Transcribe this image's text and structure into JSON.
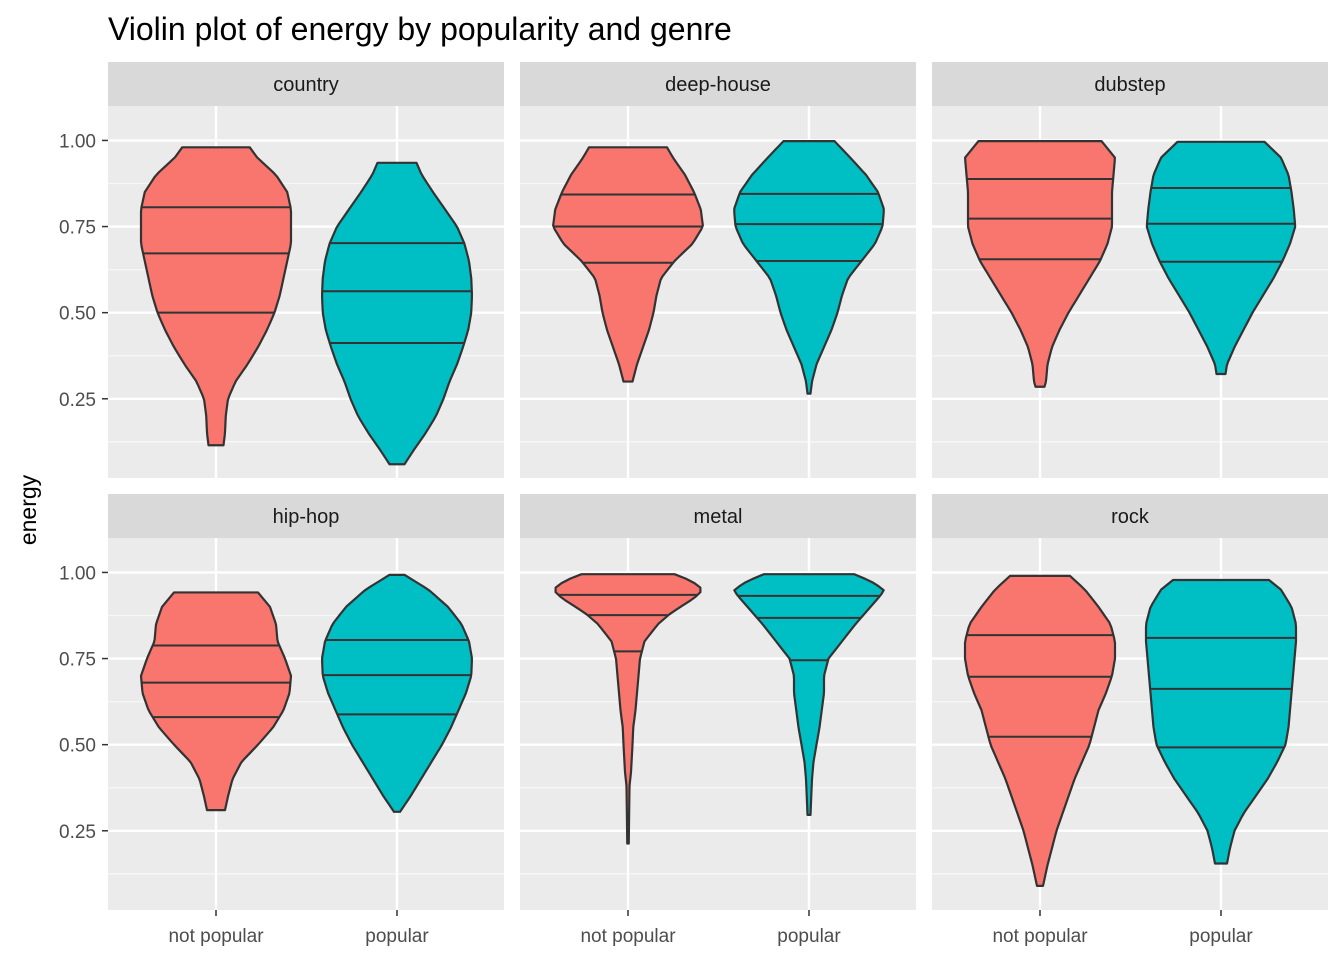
{
  "chart_data": {
    "type": "violin",
    "title": "Violin plot of energy by popularity and genre",
    "xlabel": "",
    "ylabel": "energy",
    "ylim": [
      0.02,
      1.1
    ],
    "yticks": [
      0.25,
      0.5,
      0.75,
      1.0
    ],
    "ytick_labels": [
      "0.25",
      "0.50",
      "0.75",
      "1.00"
    ],
    "categories": [
      "not popular",
      "popular"
    ],
    "fill_colors": {
      "not popular": "#F8766D",
      "popular": "#00BFC4"
    },
    "grid": true,
    "legend": "none",
    "facets": [
      {
        "genre": "country",
        "violins": [
          {
            "category": "not popular",
            "min": 0.115,
            "max": 0.98,
            "quantiles": [
              0.5,
              0.672,
              0.806
            ],
            "profile": [
              [
                0.115,
                0.1
              ],
              [
                0.15,
                0.12
              ],
              [
                0.2,
                0.13
              ],
              [
                0.25,
                0.16
              ],
              [
                0.3,
                0.26
              ],
              [
                0.35,
                0.42
              ],
              [
                0.4,
                0.56
              ],
              [
                0.45,
                0.68
              ],
              [
                0.5,
                0.78
              ],
              [
                0.55,
                0.85
              ],
              [
                0.6,
                0.9
              ],
              [
                0.65,
                0.95
              ],
              [
                0.7,
                1.0
              ],
              [
                0.75,
                1.0
              ],
              [
                0.8,
                1.0
              ],
              [
                0.85,
                0.95
              ],
              [
                0.9,
                0.8
              ],
              [
                0.95,
                0.55
              ],
              [
                0.98,
                0.45
              ]
            ]
          },
          {
            "category": "popular",
            "min": 0.06,
            "max": 0.935,
            "quantiles": [
              0.412,
              0.562,
              0.702
            ],
            "profile": [
              [
                0.06,
                0.1
              ],
              [
                0.1,
                0.22
              ],
              [
                0.15,
                0.38
              ],
              [
                0.2,
                0.52
              ],
              [
                0.25,
                0.62
              ],
              [
                0.3,
                0.7
              ],
              [
                0.35,
                0.8
              ],
              [
                0.4,
                0.88
              ],
              [
                0.45,
                0.95
              ],
              [
                0.5,
                0.99
              ],
              [
                0.55,
                1.0
              ],
              [
                0.6,
                0.99
              ],
              [
                0.65,
                0.96
              ],
              [
                0.7,
                0.9
              ],
              [
                0.75,
                0.8
              ],
              [
                0.8,
                0.64
              ],
              [
                0.85,
                0.48
              ],
              [
                0.9,
                0.33
              ],
              [
                0.935,
                0.26
              ]
            ]
          }
        ]
      },
      {
        "genre": "deep-house",
        "violins": [
          {
            "category": "not popular",
            "min": 0.3,
            "max": 0.98,
            "quantiles": [
              0.645,
              0.75,
              0.843
            ],
            "profile": [
              [
                0.3,
                0.06
              ],
              [
                0.35,
                0.12
              ],
              [
                0.4,
                0.2
              ],
              [
                0.45,
                0.28
              ],
              [
                0.5,
                0.34
              ],
              [
                0.55,
                0.38
              ],
              [
                0.6,
                0.44
              ],
              [
                0.65,
                0.62
              ],
              [
                0.7,
                0.86
              ],
              [
                0.75,
                1.0
              ],
              [
                0.8,
                0.97
              ],
              [
                0.85,
                0.88
              ],
              [
                0.9,
                0.76
              ],
              [
                0.95,
                0.6
              ],
              [
                0.98,
                0.52
              ]
            ]
          },
          {
            "category": "popular",
            "min": 0.265,
            "max": 0.998,
            "quantiles": [
              0.65,
              0.757,
              0.845
            ],
            "profile": [
              [
                0.265,
                0.02
              ],
              [
                0.3,
                0.04
              ],
              [
                0.35,
                0.1
              ],
              [
                0.4,
                0.2
              ],
              [
                0.45,
                0.3
              ],
              [
                0.5,
                0.38
              ],
              [
                0.55,
                0.44
              ],
              [
                0.6,
                0.52
              ],
              [
                0.65,
                0.7
              ],
              [
                0.7,
                0.88
              ],
              [
                0.75,
                0.98
              ],
              [
                0.8,
                1.0
              ],
              [
                0.85,
                0.92
              ],
              [
                0.9,
                0.76
              ],
              [
                0.95,
                0.55
              ],
              [
                0.998,
                0.34
              ]
            ]
          }
        ]
      },
      {
        "genre": "dubstep",
        "violins": [
          {
            "category": "not popular",
            "min": 0.285,
            "max": 0.998,
            "quantiles": [
              0.655,
              0.773,
              0.888
            ],
            "profile": [
              [
                0.285,
                0.06
              ],
              [
                0.3,
                0.08
              ],
              [
                0.35,
                0.1
              ],
              [
                0.4,
                0.16
              ],
              [
                0.45,
                0.26
              ],
              [
                0.5,
                0.38
              ],
              [
                0.55,
                0.52
              ],
              [
                0.6,
                0.66
              ],
              [
                0.65,
                0.8
              ],
              [
                0.7,
                0.9
              ],
              [
                0.75,
                0.96
              ],
              [
                0.8,
                0.96
              ],
              [
                0.85,
                0.96
              ],
              [
                0.9,
                0.98
              ],
              [
                0.95,
                1.0
              ],
              [
                0.998,
                0.82
              ]
            ]
          },
          {
            "category": "popular",
            "min": 0.322,
            "max": 0.996,
            "quantiles": [
              0.648,
              0.758,
              0.862
            ],
            "profile": [
              [
                0.322,
                0.06
              ],
              [
                0.35,
                0.08
              ],
              [
                0.4,
                0.18
              ],
              [
                0.45,
                0.3
              ],
              [
                0.5,
                0.42
              ],
              [
                0.55,
                0.56
              ],
              [
                0.6,
                0.7
              ],
              [
                0.65,
                0.82
              ],
              [
                0.7,
                0.92
              ],
              [
                0.75,
                0.99
              ],
              [
                0.8,
                0.97
              ],
              [
                0.85,
                0.94
              ],
              [
                0.9,
                0.9
              ],
              [
                0.95,
                0.8
              ],
              [
                0.996,
                0.58
              ]
            ]
          }
        ]
      },
      {
        "genre": "hip-hop",
        "violins": [
          {
            "category": "not popular",
            "min": 0.31,
            "max": 0.942,
            "quantiles": [
              0.58,
              0.68,
              0.788
            ],
            "profile": [
              [
                0.31,
                0.12
              ],
              [
                0.35,
                0.16
              ],
              [
                0.4,
                0.22
              ],
              [
                0.45,
                0.34
              ],
              [
                0.5,
                0.56
              ],
              [
                0.55,
                0.76
              ],
              [
                0.6,
                0.9
              ],
              [
                0.65,
                0.98
              ],
              [
                0.7,
                1.0
              ],
              [
                0.75,
                0.92
              ],
              [
                0.8,
                0.82
              ],
              [
                0.85,
                0.8
              ],
              [
                0.9,
                0.72
              ],
              [
                0.942,
                0.56
              ]
            ]
          },
          {
            "category": "popular",
            "min": 0.305,
            "max": 0.993,
            "quantiles": [
              0.588,
              0.702,
              0.804
            ],
            "profile": [
              [
                0.305,
                0.04
              ],
              [
                0.35,
                0.18
              ],
              [
                0.4,
                0.32
              ],
              [
                0.45,
                0.46
              ],
              [
                0.5,
                0.6
              ],
              [
                0.55,
                0.72
              ],
              [
                0.6,
                0.82
              ],
              [
                0.65,
                0.92
              ],
              [
                0.7,
                0.99
              ],
              [
                0.75,
                1.0
              ],
              [
                0.8,
                0.96
              ],
              [
                0.85,
                0.86
              ],
              [
                0.9,
                0.68
              ],
              [
                0.95,
                0.42
              ],
              [
                0.993,
                0.1
              ]
            ]
          }
        ]
      },
      {
        "genre": "metal",
        "violins": [
          {
            "category": "not popular",
            "min": 0.213,
            "max": 0.995,
            "quantiles": [
              0.771,
              0.876,
              0.935
            ],
            "profile": [
              [
                0.213,
                0.01
              ],
              [
                0.3,
                0.015
              ],
              [
                0.38,
                0.02
              ],
              [
                0.42,
                0.04
              ],
              [
                0.5,
                0.06
              ],
              [
                0.55,
                0.07
              ],
              [
                0.6,
                0.1
              ],
              [
                0.65,
                0.12
              ],
              [
                0.7,
                0.14
              ],
              [
                0.75,
                0.16
              ],
              [
                0.8,
                0.22
              ],
              [
                0.85,
                0.4
              ],
              [
                0.88,
                0.56
              ],
              [
                0.9,
                0.7
              ],
              [
                0.925,
                0.88
              ],
              [
                0.95,
                1.0
              ],
              [
                0.975,
                0.85
              ],
              [
                0.995,
                0.62
              ]
            ]
          },
          {
            "category": "popular",
            "min": 0.296,
            "max": 0.995,
            "quantiles": [
              0.745,
              0.868,
              0.932
            ],
            "profile": [
              [
                0.296,
                0.02
              ],
              [
                0.35,
                0.03
              ],
              [
                0.4,
                0.04
              ],
              [
                0.45,
                0.06
              ],
              [
                0.5,
                0.1
              ],
              [
                0.55,
                0.14
              ],
              [
                0.6,
                0.17
              ],
              [
                0.65,
                0.2
              ],
              [
                0.7,
                0.2
              ],
              [
                0.75,
                0.26
              ],
              [
                0.8,
                0.44
              ],
              [
                0.85,
                0.62
              ],
              [
                0.9,
                0.82
              ],
              [
                0.935,
                0.96
              ],
              [
                0.95,
                1.0
              ],
              [
                0.975,
                0.82
              ],
              [
                0.995,
                0.6
              ]
            ]
          }
        ]
      },
      {
        "genre": "rock",
        "violins": [
          {
            "category": "not popular",
            "min": 0.09,
            "max": 0.99,
            "quantiles": [
              0.523,
              0.697,
              0.818
            ],
            "profile": [
              [
                0.09,
                0.04
              ],
              [
                0.15,
                0.1
              ],
              [
                0.2,
                0.16
              ],
              [
                0.25,
                0.22
              ],
              [
                0.3,
                0.3
              ],
              [
                0.35,
                0.38
              ],
              [
                0.4,
                0.46
              ],
              [
                0.45,
                0.56
              ],
              [
                0.5,
                0.66
              ],
              [
                0.55,
                0.72
              ],
              [
                0.6,
                0.78
              ],
              [
                0.65,
                0.88
              ],
              [
                0.7,
                0.96
              ],
              [
                0.75,
                1.0
              ],
              [
                0.8,
                1.0
              ],
              [
                0.85,
                0.94
              ],
              [
                0.9,
                0.78
              ],
              [
                0.95,
                0.6
              ],
              [
                0.99,
                0.4
              ]
            ]
          },
          {
            "category": "popular",
            "min": 0.155,
            "max": 0.978,
            "quantiles": [
              0.492,
              0.662,
              0.81
            ],
            "profile": [
              [
                0.155,
                0.08
              ],
              [
                0.2,
                0.12
              ],
              [
                0.25,
                0.18
              ],
              [
                0.3,
                0.3
              ],
              [
                0.35,
                0.46
              ],
              [
                0.4,
                0.62
              ],
              [
                0.45,
                0.75
              ],
              [
                0.5,
                0.86
              ],
              [
                0.55,
                0.9
              ],
              [
                0.6,
                0.92
              ],
              [
                0.65,
                0.94
              ],
              [
                0.7,
                0.96
              ],
              [
                0.75,
                0.98
              ],
              [
                0.8,
                1.0
              ],
              [
                0.85,
                1.0
              ],
              [
                0.9,
                0.94
              ],
              [
                0.95,
                0.8
              ],
              [
                0.978,
                0.64
              ]
            ]
          }
        ]
      }
    ]
  }
}
